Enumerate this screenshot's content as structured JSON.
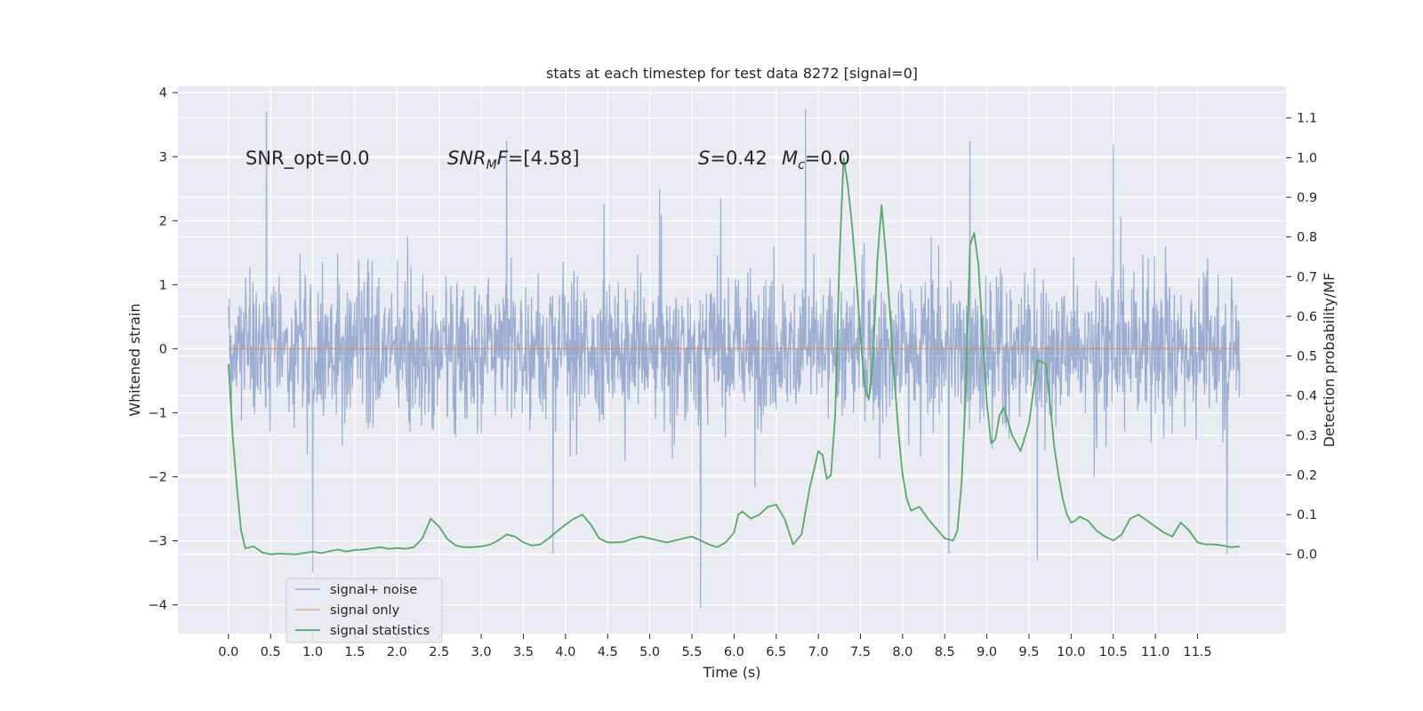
{
  "chart_data": {
    "type": "line",
    "title": "stats at each timestep for test data 8272 [signal=0]",
    "xlabel": "Time (s)",
    "ylabel": "Whitened strain",
    "ylabel_right": "Detection probability/MF",
    "xlim": [
      -0.6,
      12.55
    ],
    "ylim": [
      -4.45,
      4.1
    ],
    "ylim_right": [
      -0.2,
      1.18
    ],
    "x_ticks": [
      "0.0",
      "0.5",
      "1.0",
      "1.5",
      "2.0",
      "2.5",
      "3.0",
      "3.5",
      "4.0",
      "4.5",
      "5.0",
      "5.5",
      "6.0",
      "6.5",
      "7.0",
      "7.5",
      "8.0",
      "8.5",
      "9.0",
      "9.5",
      "10.0",
      "10.5",
      "11.0",
      "11.5"
    ],
    "y_ticks": [
      "4",
      "3",
      "2",
      "1",
      "0",
      "−1",
      "−2",
      "−3",
      "−4"
    ],
    "y_ticks_right": [
      "1.1",
      "1.0",
      "0.9",
      "0.8",
      "0.7",
      "0.6",
      "0.5",
      "0.4",
      "0.3",
      "0.2",
      "0.1",
      "0.0"
    ],
    "grid": true,
    "legend_position": "bottom-left",
    "annotations": [
      {
        "text": "SNR_opt=0.0",
        "x": 0.2,
        "y": 2.95
      },
      {
        "text": "SNR_MF=[4.58]",
        "x": 2.6,
        "y": 2.95
      },
      {
        "text": "S=0.42   M_c=0.0",
        "x": 5.6,
        "y": 2.95
      }
    ],
    "series": [
      {
        "name": "signal+ noise",
        "color": "#4c72b0",
        "axis": "left",
        "description": "whitened noise, t from 0 to 12 s, mostly within ±1.7, spikes up to about ±3.8",
        "x_range": [
          0,
          12.0
        ],
        "peaks": [
          [
            0.45,
            3.7
          ],
          [
            6.85,
            3.75
          ],
          [
            5.6,
            -4.05
          ],
          [
            1.0,
            -3.5
          ],
          [
            9.6,
            -3.3
          ],
          [
            3.85,
            -3.2
          ],
          [
            8.55,
            -3.2
          ],
          [
            11.85,
            -3.2
          ],
          [
            3.3,
            3.25
          ],
          [
            8.8,
            3.25
          ],
          [
            10.5,
            3.2
          ]
        ]
      },
      {
        "name": "signal only",
        "color": "#dd8452",
        "axis": "left",
        "x": [
          0,
          12.0
        ],
        "values": [
          0,
          0
        ]
      },
      {
        "name": "signal statistics",
        "color": "#55a868",
        "axis": "right",
        "x": [
          0.0,
          0.05,
          0.1,
          0.15,
          0.2,
          0.3,
          0.4,
          0.5,
          0.6,
          0.8,
          1.0,
          1.1,
          1.2,
          1.3,
          1.4,
          1.5,
          1.6,
          1.7,
          1.8,
          1.9,
          2.0,
          2.1,
          2.2,
          2.3,
          2.4,
          2.5,
          2.6,
          2.7,
          2.8,
          2.9,
          3.0,
          3.1,
          3.2,
          3.3,
          3.4,
          3.5,
          3.6,
          3.7,
          3.8,
          3.9,
          4.0,
          4.1,
          4.2,
          4.3,
          4.4,
          4.5,
          4.6,
          4.7,
          4.8,
          4.9,
          5.0,
          5.1,
          5.2,
          5.3,
          5.4,
          5.5,
          5.6,
          5.7,
          5.8,
          5.9,
          6.0,
          6.05,
          6.1,
          6.2,
          6.3,
          6.4,
          6.5,
          6.6,
          6.7,
          6.8,
          6.9,
          7.0,
          7.05,
          7.1,
          7.15,
          7.2,
          7.25,
          7.3,
          7.35,
          7.4,
          7.45,
          7.5,
          7.55,
          7.6,
          7.65,
          7.7,
          7.75,
          7.8,
          7.85,
          7.9,
          7.95,
          8.0,
          8.05,
          8.1,
          8.2,
          8.3,
          8.4,
          8.5,
          8.6,
          8.65,
          8.7,
          8.75,
          8.8,
          8.85,
          8.9,
          8.95,
          9.0,
          9.05,
          9.1,
          9.15,
          9.2,
          9.3,
          9.4,
          9.5,
          9.6,
          9.7,
          9.75,
          9.8,
          9.85,
          9.9,
          9.95,
          10.0,
          10.05,
          10.1,
          10.2,
          10.3,
          10.4,
          10.5,
          10.6,
          10.7,
          10.8,
          10.9,
          11.0,
          11.1,
          11.2,
          11.3,
          11.4,
          11.5,
          11.6,
          11.7,
          11.8,
          11.9,
          12.0
        ],
        "values": [
          0.48,
          0.3,
          0.17,
          0.06,
          0.015,
          0.02,
          0.005,
          0.0,
          0.002,
          0.0,
          0.007,
          0.003,
          0.008,
          0.012,
          0.007,
          0.011,
          0.012,
          0.015,
          0.018,
          0.014,
          0.016,
          0.014,
          0.018,
          0.04,
          0.09,
          0.07,
          0.038,
          0.022,
          0.018,
          0.018,
          0.02,
          0.024,
          0.035,
          0.05,
          0.045,
          0.03,
          0.022,
          0.025,
          0.04,
          0.058,
          0.075,
          0.09,
          0.1,
          0.075,
          0.04,
          0.03,
          0.03,
          0.032,
          0.04,
          0.045,
          0.04,
          0.035,
          0.03,
          0.035,
          0.04,
          0.045,
          0.035,
          0.025,
          0.018,
          0.03,
          0.055,
          0.1,
          0.108,
          0.09,
          0.1,
          0.12,
          0.125,
          0.09,
          0.025,
          0.05,
          0.17,
          0.26,
          0.25,
          0.19,
          0.2,
          0.35,
          0.74,
          1.0,
          0.93,
          0.83,
          0.7,
          0.55,
          0.42,
          0.39,
          0.5,
          0.74,
          0.88,
          0.76,
          0.61,
          0.45,
          0.31,
          0.2,
          0.14,
          0.11,
          0.12,
          0.09,
          0.065,
          0.04,
          0.035,
          0.06,
          0.18,
          0.41,
          0.78,
          0.81,
          0.73,
          0.55,
          0.38,
          0.28,
          0.29,
          0.35,
          0.37,
          0.3,
          0.26,
          0.33,
          0.49,
          0.48,
          0.38,
          0.27,
          0.2,
          0.14,
          0.1,
          0.08,
          0.085,
          0.095,
          0.085,
          0.06,
          0.045,
          0.035,
          0.05,
          0.09,
          0.1,
          0.085,
          0.07,
          0.055,
          0.045,
          0.08,
          0.06,
          0.03,
          0.025,
          0.025,
          0.022,
          0.018,
          0.02
        ]
      }
    ]
  },
  "legend": [
    {
      "label": "signal+ noise",
      "color": "#4c72b0"
    },
    {
      "label": "signal only",
      "color": "#dd8452"
    },
    {
      "label": "signal statistics",
      "color": "#55a868"
    }
  ],
  "annotation_parts": {
    "snr_opt": "SNR_opt=0.0",
    "snr_mf_main": "SNR",
    "snr_mf_sub": "M",
    "snr_mf_f": "F",
    "snr_mf_value": "=[4.58]",
    "s_symbol": "S",
    "s_value": "=0.42",
    "mc_main": "M",
    "mc_sub": "c",
    "mc_value": "=0.0"
  }
}
